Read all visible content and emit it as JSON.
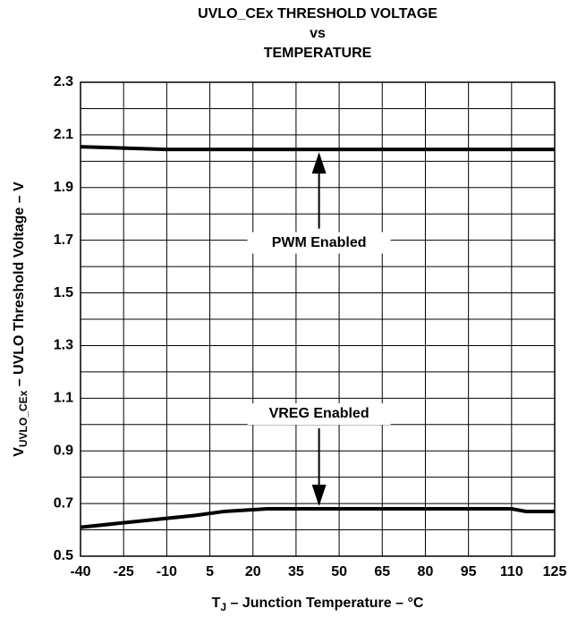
{
  "chart_data": {
    "type": "line",
    "title": [
      "UVLO_CEx THRESHOLD VOLTAGE",
      "vs",
      "TEMPERATURE"
    ],
    "ylabel": [
      "V",
      "UVLO_CEx",
      " – UVLO Threshold Voltage – V"
    ],
    "xlabel": [
      "T",
      "J",
      " – Junction Temperature – °C"
    ],
    "xlim": [
      -40,
      125
    ],
    "xticks": [
      -40,
      -25,
      -10,
      5,
      20,
      35,
      50,
      65,
      80,
      95,
      110,
      125
    ],
    "ylim": [
      0.5,
      2.3
    ],
    "yticks": [
      0.5,
      0.7,
      0.9,
      1.1,
      1.3,
      1.5,
      1.7,
      1.9,
      2.1,
      2.3
    ],
    "yminor_grid": [
      0.6,
      0.8,
      1.0,
      1.2,
      1.4,
      1.6,
      1.8,
      2.0,
      2.2
    ],
    "grid": true,
    "series": [
      {
        "name": "PWM Enabled",
        "color": "#000000",
        "label_x": 43,
        "label_y": 1.69,
        "x": [
          -40,
          -10,
          125
        ],
        "values": [
          2.055,
          2.045,
          2.045
        ]
      },
      {
        "name": "VREG Enabled",
        "color": "#000000",
        "label_x": 43,
        "label_y": 1.04,
        "x": [
          -40,
          0,
          10,
          25,
          110,
          115,
          125
        ],
        "values": [
          0.61,
          0.655,
          0.67,
          0.68,
          0.68,
          0.67,
          0.67
        ]
      }
    ]
  }
}
